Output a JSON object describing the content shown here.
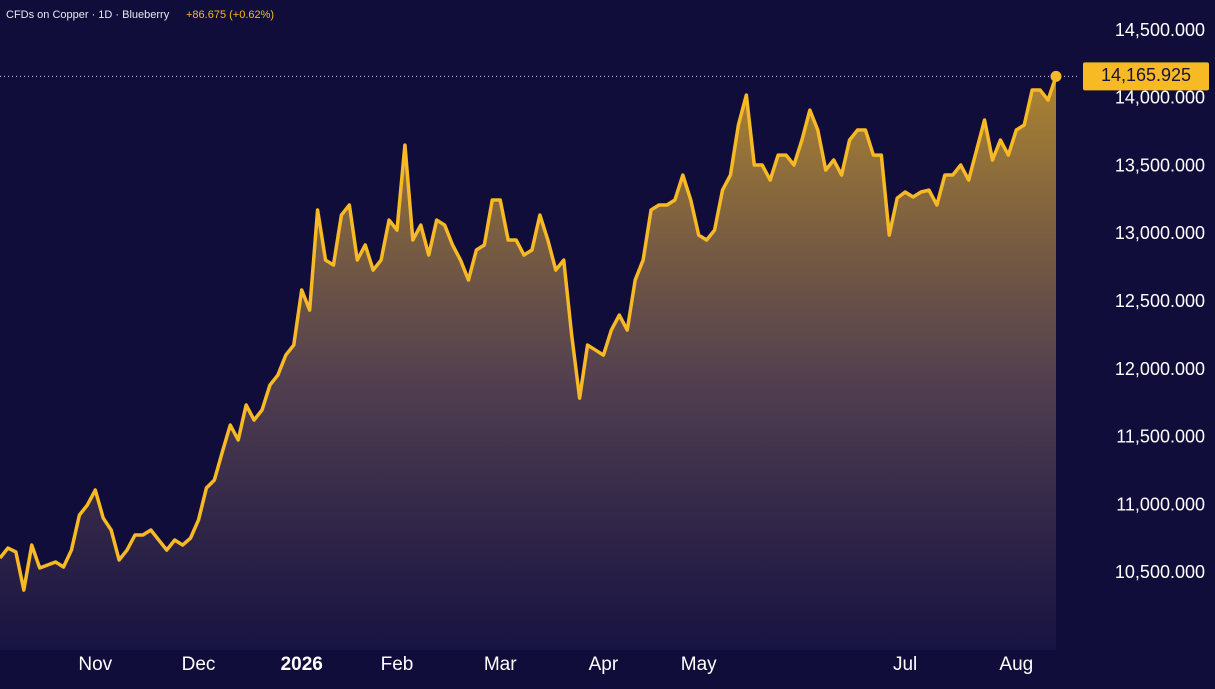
{
  "chart_data": {
    "type": "line",
    "title": "CFDs on Copper · 1D · Blueberry",
    "change": "+86.675 (+0.62%)",
    "categories": [
      null,
      null,
      null,
      null,
      null,
      null,
      null,
      null,
      null,
      null,
      null,
      null,
      "Nov",
      null,
      null,
      null,
      null,
      null,
      null,
      null,
      null,
      null,
      null,
      null,
      null,
      "Dec",
      null,
      null,
      null,
      null,
      null,
      null,
      null,
      null,
      null,
      null,
      null,
      null,
      "2026",
      null,
      null,
      null,
      null,
      null,
      null,
      null,
      null,
      null,
      null,
      null,
      "Feb",
      null,
      null,
      null,
      null,
      null,
      null,
      null,
      null,
      null,
      null,
      null,
      null,
      "Mar",
      null,
      null,
      null,
      null,
      null,
      null,
      null,
      null,
      null,
      null,
      null,
      null,
      "Apr",
      null,
      null,
      null,
      null,
      null,
      null,
      null,
      null,
      null,
      null,
      null,
      "May",
      null,
      null,
      null,
      null,
      null,
      null,
      null,
      null,
      null,
      null,
      null,
      null,
      null,
      null,
      null,
      null,
      null,
      null,
      null,
      null,
      null,
      null,
      null,
      null,
      null,
      "Jul",
      null,
      null,
      null,
      null,
      null,
      null,
      null,
      null,
      null,
      null,
      null,
      null,
      null,
      "Aug",
      null,
      null,
      null,
      null,
      null
    ],
    "series": [
      {
        "name": "CFDs on Copper",
        "color": "#f7b924",
        "values": [
          10613,
          10687,
          10658,
          10377,
          10709,
          10540,
          10562,
          10584,
          10547,
          10672,
          10930,
          11004,
          11115,
          10908,
          10820,
          10599,
          10672,
          10783,
          10783,
          10820,
          10746,
          10672,
          10746,
          10709,
          10761,
          10894,
          11130,
          11189,
          11395,
          11594,
          11484,
          11742,
          11631,
          11705,
          11889,
          11963,
          12110,
          12184,
          12590,
          12442,
          13180,
          12811,
          12774,
          13143,
          13217,
          12811,
          12922,
          12737,
          12811,
          13106,
          13032,
          13659,
          12959,
          13069,
          12848,
          13106,
          13069,
          12922,
          12811,
          12664,
          12885,
          12922,
          13254,
          13254,
          12959,
          12959,
          12848,
          12885,
          13143,
          12959,
          12737,
          12811,
          12258,
          11793,
          12184,
          12147,
          12110,
          12295,
          12405,
          12295,
          12664,
          12811,
          13180,
          13217,
          13217,
          13254,
          13438,
          13254,
          12995,
          12959,
          13032,
          13327,
          13438,
          13807,
          14028,
          13512,
          13512,
          13401,
          13585,
          13585,
          13512,
          13696,
          13917,
          13770,
          13475,
          13549,
          13438,
          13696,
          13770,
          13770,
          13585,
          13585,
          12995,
          13268,
          13313,
          13276,
          13313,
          13327,
          13217,
          13438,
          13438,
          13512,
          13401,
          13622,
          13844,
          13549,
          13696,
          13585,
          13770,
          13807,
          14065,
          14065,
          13991,
          14165.925
        ],
        "value_labels": [
          null,
          null,
          null,
          null,
          null,
          null,
          null,
          null,
          null,
          null,
          null,
          null,
          null,
          null,
          null,
          null,
          null,
          null,
          null,
          null,
          null,
          null,
          null,
          null,
          null,
          null,
          null,
          null,
          null,
          null,
          null,
          null,
          null,
          null,
          null,
          null,
          null,
          null,
          null,
          null,
          null,
          null,
          null,
          null,
          null,
          null,
          null,
          null,
          null,
          null,
          null,
          null,
          null,
          null,
          null,
          null,
          null,
          null,
          null,
          null,
          null,
          null,
          null,
          null,
          null,
          null,
          null,
          null,
          null,
          null,
          null,
          null,
          null,
          null,
          null,
          null,
          null,
          null,
          null,
          null,
          null,
          null,
          null,
          null,
          null,
          null,
          null,
          null,
          null,
          null,
          null,
          null,
          null,
          null,
          null,
          null,
          null,
          null,
          null,
          null,
          null,
          null,
          null,
          null,
          null,
          null,
          null,
          null,
          null,
          null,
          null,
          null,
          null,
          null,
          null,
          null,
          null,
          null,
          null,
          null,
          null,
          null,
          null,
          null,
          null,
          null,
          null,
          null,
          null,
          null,
          null,
          null,
          null,
          "14,165.925"
        ]
      }
    ],
    "ylim": [
      9935,
      14729
    ],
    "yticks": [
      {
        "value": 10500,
        "label": "10,500.000"
      },
      {
        "value": 11000,
        "label": "11,000.000"
      },
      {
        "value": 11500,
        "label": "11,500.000"
      },
      {
        "value": 12000,
        "label": "12,000.000"
      },
      {
        "value": 12500,
        "label": "12,500.000"
      },
      {
        "value": 13000,
        "label": "13,000.000"
      },
      {
        "value": 13500,
        "label": "13,500.000"
      },
      {
        "value": 14000,
        "label": "14,000.000"
      },
      {
        "value": 14500,
        "label": "14,500.000"
      }
    ],
    "background": "#110d3b"
  }
}
